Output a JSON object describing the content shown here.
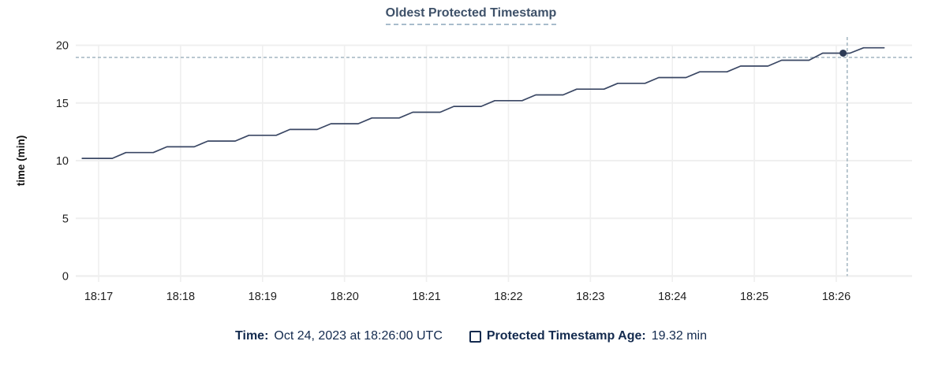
{
  "chart": {
    "title": "Oldest Protected Timestamp"
  },
  "chart_data": {
    "type": "line",
    "title": "Oldest Protected Timestamp",
    "xlabel": "",
    "ylabel": "time (min)",
    "ylim": [
      0,
      20
    ],
    "y_ticks": [
      0,
      5,
      10,
      15,
      20
    ],
    "x_ticks": [
      "18:17",
      "18:18",
      "18:19",
      "18:20",
      "18:21",
      "18:22",
      "18:23",
      "18:24",
      "18:25",
      "18:26"
    ],
    "x_range": [
      "18:16:43",
      "18:26:55"
    ],
    "grid": true,
    "legend_position": "bottom",
    "series": [
      {
        "name": "Protected Timestamp Age",
        "unit": "min",
        "points": [
          [
            "18:16:48",
            10.2
          ],
          [
            "18:17:10",
            10.2
          ],
          [
            "18:17:20",
            10.7
          ],
          [
            "18:17:40",
            10.7
          ],
          [
            "18:17:50",
            11.2
          ],
          [
            "18:18:10",
            11.2
          ],
          [
            "18:18:20",
            11.7
          ],
          [
            "18:18:40",
            11.7
          ],
          [
            "18:18:50",
            12.2
          ],
          [
            "18:19:10",
            12.2
          ],
          [
            "18:19:20",
            12.7
          ],
          [
            "18:19:40",
            12.7
          ],
          [
            "18:19:50",
            13.2
          ],
          [
            "18:20:10",
            13.2
          ],
          [
            "18:20:20",
            13.7
          ],
          [
            "18:20:40",
            13.7
          ],
          [
            "18:20:50",
            14.2
          ],
          [
            "18:21:10",
            14.2
          ],
          [
            "18:21:20",
            14.7
          ],
          [
            "18:21:40",
            14.7
          ],
          [
            "18:21:50",
            15.2
          ],
          [
            "18:22:10",
            15.2
          ],
          [
            "18:22:20",
            15.7
          ],
          [
            "18:22:40",
            15.7
          ],
          [
            "18:22:50",
            16.2
          ],
          [
            "18:23:10",
            16.2
          ],
          [
            "18:23:20",
            16.7
          ],
          [
            "18:23:40",
            16.7
          ],
          [
            "18:23:50",
            17.2
          ],
          [
            "18:24:10",
            17.2
          ],
          [
            "18:24:20",
            17.7
          ],
          [
            "18:24:40",
            17.7
          ],
          [
            "18:24:50",
            18.2
          ],
          [
            "18:25:10",
            18.2
          ],
          [
            "18:25:20",
            18.7
          ],
          [
            "18:25:40",
            18.7
          ],
          [
            "18:25:50",
            19.32
          ],
          [
            "18:26:10",
            19.32
          ],
          [
            "18:26:20",
            19.78
          ],
          [
            "18:26:35",
            19.78
          ]
        ]
      }
    ],
    "hover_point": {
      "x": "18:26:00",
      "y": 19.32
    }
  },
  "hover": {
    "time_label": "Time:",
    "time_value": "Oct 24, 2023 at 18:26:00 UTC",
    "series_label": "Protected Timestamp Age:",
    "series_value": "19.32 min",
    "marker": {
      "time": "18:26:05",
      "value": 19.32
    },
    "crosshair": {
      "time": "18:26:08",
      "value": 18.95
    }
  },
  "colors": {
    "series_line": "#3a4764",
    "hover_marker": "#2c3a55",
    "crosshair": "#a2b5c0",
    "grid": "#efefef",
    "tick_text": "#1f1f1f",
    "title_text": "#3e5169",
    "title_underline": "#a8bccc",
    "legend_text": "#132a4e"
  }
}
